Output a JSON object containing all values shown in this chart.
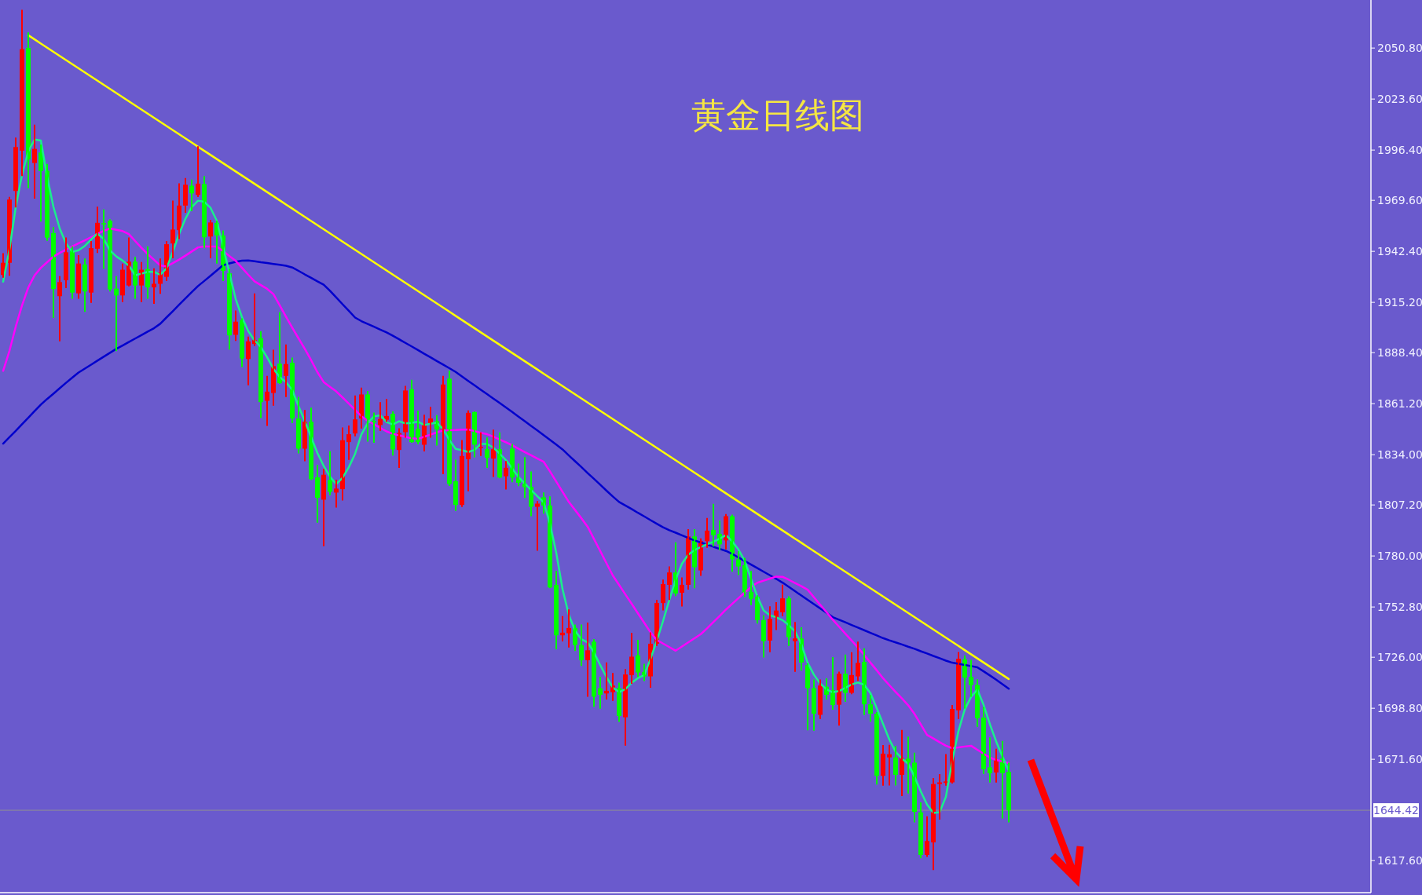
{
  "chart_data": {
    "type": "candlestick",
    "title": "黄金日线图",
    "categories": [
      null,
      null,
      null,
      null,
      null,
      null,
      null,
      null,
      null,
      null,
      null,
      null,
      null,
      null,
      null,
      null,
      null,
      null,
      null,
      null,
      null,
      null,
      null,
      null,
      null,
      null,
      null,
      null,
      null,
      null,
      null,
      null,
      null,
      null,
      null,
      null,
      null,
      null,
      null,
      null,
      null,
      null,
      null,
      null,
      null,
      null,
      null,
      null,
      null,
      null,
      null,
      null,
      null,
      null,
      null,
      null,
      null,
      null,
      null,
      null,
      null,
      null,
      null,
      null,
      null,
      null,
      null,
      null,
      null,
      null,
      null,
      null,
      null,
      null,
      null,
      null,
      null,
      null,
      null,
      null,
      null,
      null,
      null,
      null,
      null,
      null,
      null,
      null,
      null,
      null,
      null,
      null,
      null,
      null,
      null,
      null,
      null,
      null,
      null,
      null,
      null,
      null,
      null,
      null,
      null,
      null,
      null,
      null,
      null,
      null,
      null,
      null,
      null,
      null,
      null,
      null,
      null,
      null,
      null,
      null,
      null,
      null,
      null,
      null,
      null,
      null,
      null,
      null,
      null,
      null,
      null,
      null,
      null,
      null,
      null,
      null,
      null,
      null,
      null,
      null,
      null,
      null,
      null,
      null,
      null,
      null,
      null,
      null,
      null,
      null,
      null,
      null,
      null,
      null,
      null,
      null,
      null,
      null,
      null,
      null,
      null
    ],
    "ohlc": [
      [
        1929.8,
        1941.0,
        1928.8,
        1936.3
      ],
      [
        1936.3,
        1971.0,
        1929.8,
        1970.0
      ],
      [
        1974.6,
        2002.6,
        1966.2,
        1998.0
      ],
      [
        1996.1,
        2070.8,
        1983.0,
        2050.2
      ],
      [
        2050.8,
        2058.7,
        1976.5,
        1991.4
      ],
      [
        1989.5,
        2009.5,
        1970.9,
        1997.0
      ],
      [
        1995.1,
        1998.9,
        1958.7,
        1985.2
      ],
      [
        1985.4,
        1988.6,
        1948.4,
        1949.7
      ],
      [
        1952.2,
        1955.0,
        1907.3,
        1922.3
      ],
      [
        1918.5,
        1928.8,
        1894.8,
        1926.0
      ],
      [
        1927.0,
        1949.4,
        1923.2,
        1941.9
      ],
      [
        1942.8,
        1944.7,
        1917.6,
        1920.4
      ],
      [
        1920.0,
        1940.0,
        1917.6,
        1935.9
      ],
      [
        1935.4,
        1938.2,
        1910.5,
        1921.0
      ],
      [
        1920.4,
        1947.5,
        1915.4,
        1944.1
      ],
      [
        1943.8,
        1965.8,
        1941.9,
        1957.6
      ],
      [
        1957.4,
        1964.3,
        1933.5,
        1956.8
      ],
      [
        1958.7,
        1959.1,
        1921.4,
        1922.1
      ],
      [
        1922.5,
        1928.8,
        1889.6,
        1918.9
      ],
      [
        1918.9,
        1935.4,
        1915.8,
        1932.6
      ],
      [
        1924.2,
        1949.4,
        1924.2,
        1936.9
      ],
      [
        1936.9,
        1939.1,
        1917.6,
        1924.2
      ],
      [
        1924.2,
        1936.3,
        1915.8,
        1932.6
      ],
      [
        1932.9,
        1944.7,
        1917.6,
        1923.2
      ],
      [
        1923.2,
        1932.9,
        1914.8,
        1925.1
      ],
      [
        1925.1,
        1938.2,
        1920.2,
        1931.1
      ],
      [
        1928.8,
        1947.5,
        1927.0,
        1946.2
      ],
      [
        1946.6,
        1969.0,
        1939.1,
        1954.0
      ],
      [
        1953.7,
        1978.3,
        1949.4,
        1966.8
      ],
      [
        1966.8,
        1981.1,
        1963.4,
        1977.9
      ],
      [
        1977.4,
        1980.2,
        1964.3,
        1973.3
      ],
      [
        1972.5,
        1998.0,
        1971.8,
        1978.5
      ],
      [
        1978.3,
        1982.1,
        1944.7,
        1949.9
      ],
      [
        1950.3,
        1958.7,
        1939.1,
        1957.8
      ],
      [
        1957.6,
        1958.3,
        1936.3,
        1950.9
      ],
      [
        1950.9,
        1953.1,
        1927.0,
        1932.0
      ],
      [
        1930.7,
        1932.6,
        1890.5,
        1897.6
      ],
      [
        1897.9,
        1910.4,
        1895.1,
        1904.9
      ],
      [
        1905.8,
        1906.3,
        1881.1,
        1885.3
      ],
      [
        1885.0,
        1896.5,
        1871.4,
        1894.4
      ],
      [
        1893.0,
        1919.5,
        1892.3,
        1895.1
      ],
      [
        1896.1,
        1899.3,
        1853.9,
        1862.0
      ],
      [
        1862.7,
        1875.6,
        1849.8,
        1867.6
      ],
      [
        1866.9,
        1889.5,
        1860.5,
        1881.2
      ],
      [
        1882.5,
        1909.5,
        1872.1,
        1872.1
      ],
      [
        1876.0,
        1892.3,
        1865.1,
        1882.3
      ],
      [
        1883.0,
        1885.3,
        1851.2,
        1853.3
      ],
      [
        1853.3,
        1864.4,
        1835.1,
        1837.2
      ],
      [
        1837.2,
        1857.4,
        1830.9,
        1851.6
      ],
      [
        1851.6,
        1858.6,
        1820.9,
        1820.9
      ],
      [
        1821.9,
        1828.1,
        1798.2,
        1811.0
      ],
      [
        1810.0,
        1826.1,
        1785.6,
        1823.3
      ],
      [
        1820.5,
        1835.4,
        1812.8,
        1814.2
      ],
      [
        1813.8,
        1820.2,
        1806.2,
        1815.9
      ],
      [
        1815.6,
        1848.1,
        1810.0,
        1841.7
      ],
      [
        1840.7,
        1849.1,
        1831.6,
        1844.9
      ],
      [
        1845.3,
        1865.1,
        1844.2,
        1852.8
      ],
      [
        1853.3,
        1869.3,
        1848.4,
        1866.1
      ],
      [
        1866.1,
        1867.5,
        1841.4,
        1852.6
      ],
      [
        1851.9,
        1856.0,
        1840.7,
        1851.2
      ],
      [
        1849.8,
        1861.6,
        1847.0,
        1853.0
      ],
      [
        1852.6,
        1863.4,
        1851.9,
        1854.6
      ],
      [
        1855.8,
        1856.7,
        1834.0,
        1836.8
      ],
      [
        1836.5,
        1847.7,
        1827.4,
        1845.6
      ],
      [
        1846.0,
        1870.3,
        1843.5,
        1868.2
      ],
      [
        1868.9,
        1873.5,
        1840.7,
        1840.7
      ],
      [
        1847.7,
        1857.1,
        1840.0,
        1840.7
      ],
      [
        1839.3,
        1854.9,
        1836.2,
        1850.5
      ],
      [
        1850.5,
        1859.1,
        1843.5,
        1853.3
      ],
      [
        1851.9,
        1854.7,
        1839.3,
        1847.4
      ],
      [
        1847.0,
        1875.6,
        1824.0,
        1871.4
      ],
      [
        1874.5,
        1878.4,
        1817.7,
        1818.4
      ],
      [
        1819.8,
        1830.9,
        1804.4,
        1807.2
      ],
      [
        1807.2,
        1841.4,
        1806.5,
        1833.3
      ],
      [
        1831.6,
        1857.2,
        1814.9,
        1856.3
      ],
      [
        1856.7,
        1856.7,
        1833.0,
        1839.3
      ],
      [
        1837.8,
        1845.5,
        1833.7,
        1838.2
      ],
      [
        1836.9,
        1842.7,
        1827.4,
        1832.3
      ],
      [
        1831.9,
        1846.9,
        1822.5,
        1836.9
      ],
      [
        1836.9,
        1845.5,
        1821.8,
        1821.8
      ],
      [
        1822.5,
        1830.2,
        1815.8,
        1827.0
      ],
      [
        1837.2,
        1839.3,
        1819.7,
        1821.8
      ],
      [
        1821.8,
        1828.8,
        1817.6,
        1819.0
      ],
      [
        1818.6,
        1832.3,
        1811.4,
        1816.7
      ],
      [
        1816.9,
        1824.6,
        1801.6,
        1806.2
      ],
      [
        1806.2,
        1808.8,
        1783.2,
        1807.9
      ],
      [
        1811.3,
        1813.4,
        1803.0,
        1806.9
      ],
      [
        1806.9,
        1811.3,
        1763.2,
        1763.2
      ],
      [
        1764.6,
        1771.6,
        1730.7,
        1737.7
      ],
      [
        1737.7,
        1747.5,
        1734.9,
        1739.1
      ],
      [
        1738.8,
        1751.1,
        1731.6,
        1741.6
      ],
      [
        1741.6,
        1743.0,
        1729.7,
        1732.5
      ],
      [
        1732.5,
        1743.0,
        1721.8,
        1724.4
      ],
      [
        1724.4,
        1744.1,
        1705.3,
        1729.7
      ],
      [
        1734.3,
        1735.3,
        1700.0,
        1705.0
      ],
      [
        1709.5,
        1715.1,
        1699.0,
        1706.0
      ],
      [
        1706.7,
        1722.8,
        1703.9,
        1708.1
      ],
      [
        1707.4,
        1717.2,
        1703.2,
        1710.9
      ],
      [
        1709.5,
        1712.0,
        1692.0,
        1694.7
      ],
      [
        1694.0,
        1719.3,
        1679.3,
        1716.8
      ],
      [
        1716.5,
        1738.5,
        1712.3,
        1726.3
      ],
      [
        1727.0,
        1734.9,
        1715.8,
        1717.9
      ],
      [
        1718.2,
        1722.1,
        1713.7,
        1715.8
      ],
      [
        1715.8,
        1738.8,
        1710.2,
        1733.2
      ],
      [
        1733.2,
        1756.2,
        1732.5,
        1754.9
      ],
      [
        1754.9,
        1767.0,
        1751.4,
        1765.0
      ],
      [
        1764.6,
        1774.0,
        1756.9,
        1771.2
      ],
      [
        1771.2,
        1786.9,
        1759.0,
        1760.0
      ],
      [
        1760.4,
        1768.1,
        1753.5,
        1764.6
      ],
      [
        1764.6,
        1793.9,
        1762.5,
        1790.4
      ],
      [
        1790.4,
        1793.9,
        1763.2,
        1774.0
      ],
      [
        1772.3,
        1789.0,
        1769.8,
        1787.9
      ],
      [
        1787.9,
        1799.8,
        1784.8,
        1793.5
      ],
      [
        1793.9,
        1807.4,
        1785.5,
        1791.1
      ],
      [
        1791.8,
        1798.5,
        1783.5,
        1786.2
      ],
      [
        1788.3,
        1801.9,
        1783.9,
        1801.2
      ],
      [
        1801.2,
        1801.6,
        1772.0,
        1778.2
      ],
      [
        1778.2,
        1782.1,
        1770.2,
        1774.4
      ],
      [
        1775.1,
        1778.6,
        1758.6,
        1760.4
      ],
      [
        1760.9,
        1771.6,
        1754.2,
        1757.2
      ],
      [
        1758.3,
        1758.6,
        1744.4,
        1745.8
      ],
      [
        1745.8,
        1747.9,
        1726.3,
        1734.6
      ],
      [
        1734.9,
        1752.8,
        1729.1,
        1746.5
      ],
      [
        1746.9,
        1754.9,
        1740.9,
        1750.9
      ],
      [
        1750.0,
        1764.3,
        1748.3,
        1757.4
      ],
      [
        1757.4,
        1758.1,
        1732.5,
        1736.7
      ],
      [
        1734.6,
        1744.4,
        1718.6,
        1736.0
      ],
      [
        1736.0,
        1741.6,
        1719.3,
        1723.2
      ],
      [
        1721.8,
        1722.3,
        1687.5,
        1709.5
      ],
      [
        1709.5,
        1713.7,
        1687.2,
        1695.9
      ],
      [
        1695.3,
        1713.7,
        1693.5,
        1710.9
      ],
      [
        1710.3,
        1714.4,
        1703.9,
        1706.0
      ],
      [
        1708.4,
        1725.6,
        1698.4,
        1700.5
      ],
      [
        1700.7,
        1717.9,
        1690.0,
        1717.2
      ],
      [
        1717.2,
        1727.0,
        1702.6,
        1707.0
      ],
      [
        1707.0,
        1728.3,
        1706.7,
        1716.5
      ],
      [
        1715.8,
        1733.9,
        1713.7,
        1723.0
      ],
      [
        1723.5,
        1730.4,
        1695.6,
        1700.9
      ],
      [
        1700.9,
        1705.3,
        1692.1,
        1695.9
      ],
      [
        1695.9,
        1696.3,
        1658.6,
        1662.8
      ],
      [
        1662.8,
        1678.8,
        1657.9,
        1674.6
      ],
      [
        1672.6,
        1678.9,
        1658.0,
        1674.3
      ],
      [
        1672.6,
        1678.2,
        1658.0,
        1663.3
      ],
      [
        1663.3,
        1686.8,
        1652.4,
        1672.3
      ],
      [
        1671.9,
        1683.3,
        1653.8,
        1669.8
      ],
      [
        1669.8,
        1674.7,
        1638.4,
        1643.6
      ],
      [
        1643.3,
        1648.2,
        1619.2,
        1620.6
      ],
      [
        1620.6,
        1640.8,
        1620.0,
        1628.0
      ],
      [
        1627.3,
        1661.2,
        1613.0,
        1658.4
      ],
      [
        1658.4,
        1663.3,
        1639.8,
        1659.3
      ],
      [
        1659.0,
        1674.0,
        1657.9,
        1659.8
      ],
      [
        1659.3,
        1700.1,
        1659.1,
        1698.4
      ],
      [
        1697.7,
        1728.4,
        1693.5,
        1725.2
      ],
      [
        1724.9,
        1726.6,
        1699.1,
        1715.1
      ],
      [
        1715.6,
        1724.2,
        1705.4,
        1711.2
      ],
      [
        1711.2,
        1713.8,
        1689.3,
        1693.5
      ],
      [
        1693.8,
        1699.1,
        1664.2,
        1666.3
      ],
      [
        1667.3,
        1682.8,
        1659.6,
        1664.2
      ],
      [
        1664.6,
        1676.8,
        1659.6,
        1671.2
      ],
      [
        1671.9,
        1681.0,
        1640.5,
        1664.2
      ],
      [
        1664.9,
        1669.4,
        1638.4,
        1644.4
      ]
    ],
    "series": [
      {
        "type": "line",
        "color": "#ffff00",
        "values": [
          null,
          null,
          null,
          null,
          2057.6,
          2055.4,
          2053.2,
          2051.0,
          2048.8,
          2046.6,
          2044.4,
          2042.2,
          2040.0,
          2037.8,
          2035.6,
          2033.4,
          2031.2,
          2029.0,
          2026.8,
          2024.6,
          2022.4,
          2020.2,
          2018.0,
          2015.8,
          2013.6,
          2011.4,
          2009.2,
          2007.0,
          2004.8,
          2002.6,
          2000.4,
          1998.2,
          1996.0,
          1993.8,
          1991.6,
          1989.4,
          1987.2,
          1985.0,
          1982.8,
          1980.6,
          1978.4,
          1976.2,
          1974.0,
          1971.8,
          1969.6,
          1967.4,
          1965.2,
          1963.0,
          1960.8,
          1958.6,
          1956.4,
          1954.2,
          1952.0,
          1949.8,
          1947.6,
          1945.4,
          1943.2,
          1941.0,
          1938.8,
          1936.6,
          1934.4,
          1932.2,
          1930.0,
          1927.8,
          1925.6,
          1923.4,
          1921.2,
          1919.0,
          1916.8,
          1914.6,
          1912.4,
          1910.2,
          1908.0,
          1905.8,
          1903.6,
          1901.4,
          1899.2,
          1897.0,
          1894.8,
          1892.6,
          1890.4,
          1888.2,
          1886.0,
          1883.8,
          1881.6,
          1879.4,
          1877.2,
          1875.0,
          1872.8,
          1870.6,
          1868.4,
          1866.2,
          1864.0,
          1861.8,
          1859.6,
          1857.4,
          1855.2,
          1853.0,
          1850.8,
          1848.6,
          1846.4,
          1844.2,
          1842.0,
          1839.8,
          1837.6,
          1835.4,
          1833.2,
          1831.0,
          1828.8,
          1826.6,
          1824.4,
          1822.2,
          1820.0,
          1817.8,
          1815.6,
          1813.4,
          1811.2,
          1809.0,
          1806.8,
          1804.6,
          1802.4,
          1800.2,
          1798.0,
          1795.8,
          1793.6,
          1791.4,
          1789.2,
          1787.0,
          1784.8,
          1782.6,
          1780.4,
          1778.2,
          1776.0,
          1773.8,
          1771.6,
          1769.4,
          1767.2,
          1765.0,
          1762.8,
          1760.6,
          1758.4,
          1756.2,
          1754.0,
          1751.8,
          1749.6,
          1747.4,
          1745.2,
          1743.0,
          1740.8,
          1738.6,
          1736.4,
          1734.2,
          1732.0,
          1729.8,
          1727.6,
          1725.4,
          1723.2,
          1721.0,
          1718.8,
          1716.6,
          1714.4
        ]
      },
      {
        "type": "line",
        "color": "#0000cd",
        "values": [
          1839.9,
          1843.3,
          1846.7,
          1850.2,
          1853.7,
          1857.2,
          1860.7,
          1863.7,
          1866.5,
          1869.4,
          1872.3,
          1875.1,
          1877.8,
          1879.9,
          1882.0,
          1884.1,
          1886.2,
          1888.3,
          1890.4,
          1892.2,
          1894.1,
          1895.9,
          1897.7,
          1899.6,
          1901.4,
          1903.8,
          1907.2,
          1910.5,
          1913.9,
          1917.3,
          1920.6,
          1923.9,
          1926.6,
          1929.4,
          1932.2,
          1935.0,
          1936.0,
          1936.8,
          1937.4,
          1937.5,
          1937.1,
          1936.6,
          1936.2,
          1935.7,
          1935.2,
          1934.7,
          1933.8,
          1932.0,
          1930.1,
          1928.3,
          1926.4,
          1924.6,
          1921.4,
          1917.8,
          1914.2,
          1910.7,
          1907.1,
          1905.2,
          1903.7,
          1902.2,
          1900.7,
          1899.2,
          1897.4,
          1895.5,
          1893.6,
          1891.7,
          1889.8,
          1887.8,
          1885.9,
          1883.9,
          1882.0,
          1880.1,
          1878.1,
          1875.7,
          1873.3,
          1871.0,
          1868.6,
          1866.3,
          1863.9,
          1861.6,
          1859.2,
          1856.8,
          1854.3,
          1851.8,
          1849.3,
          1846.9,
          1844.4,
          1841.9,
          1839.4,
          1836.8,
          1833.6,
          1830.5,
          1827.4,
          1824.2,
          1821.1,
          1818.0,
          1814.8,
          1811.7,
          1808.8,
          1806.9,
          1805.0,
          1803.0,
          1801.1,
          1799.1,
          1797.2,
          1795.3,
          1793.7,
          1792.4,
          1791.0,
          1789.6,
          1788.3,
          1787.2,
          1786.1,
          1784.9,
          1783.8,
          1782.7,
          1781.1,
          1779.2,
          1777.3,
          1775.4,
          1773.5,
          1771.6,
          1769.7,
          1767.8,
          1765.8,
          1763.5,
          1761.2,
          1758.9,
          1756.6,
          1754.3,
          1752.0,
          1749.7,
          1747.4,
          1746.0,
          1744.6,
          1743.2,
          1741.8,
          1740.4,
          1739.0,
          1737.6,
          1736.2,
          1735.0,
          1733.9,
          1732.8,
          1731.6,
          1730.5,
          1729.2,
          1728.0,
          1726.7,
          1725.5,
          1724.2,
          1723.1,
          1722.5,
          1721.9,
          1721.3,
          1720.6,
          1718.5,
          1716.3,
          1714.0,
          1711.6,
          1709.2
        ]
      },
      {
        "type": "line",
        "color": "#ff00ff",
        "values": [
          1878.7,
          1889.3,
          1902.2,
          1913.5,
          1923.1,
          1929.6,
          1933.6,
          1936.6,
          1939.6,
          1941.6,
          1943.3,
          1945.0,
          1946.7,
          1948.3,
          1950.0,
          1951.7,
          1953.3,
          1954.6,
          1953.9,
          1953.2,
          1951.6,
          1947.9,
          1944.3,
          1940.9,
          1937.9,
          1934.9,
          1934.3,
          1936.1,
          1938.0,
          1940.1,
          1942.3,
          1944.5,
          1945.0,
          1945.0,
          1945.0,
          1942.6,
          1939.9,
          1937.3,
          1933.6,
          1929.9,
          1926.4,
          1924.4,
          1922.4,
          1919.6,
          1913.6,
          1907.6,
          1901.7,
          1896.0,
          1890.4,
          1884.4,
          1878.0,
          1872.7,
          1870.2,
          1867.7,
          1864.5,
          1861.2,
          1857.9,
          1854.5,
          1852.1,
          1850.2,
          1848.3,
          1846.4,
          1845.1,
          1844.3,
          1843.5,
          1842.7,
          1842.4,
          1843.6,
          1844.7,
          1845.9,
          1846.9,
          1847.0,
          1847.1,
          1847.3,
          1847.4,
          1846.6,
          1845.7,
          1844.9,
          1843.6,
          1842.1,
          1840.6,
          1839.0,
          1837.2,
          1835.4,
          1833.7,
          1831.9,
          1830.2,
          1825.1,
          1819.7,
          1814.2,
          1808.8,
          1804.5,
          1800.1,
          1795.6,
          1789.1,
          1782.6,
          1776.1,
          1769.6,
          1764.6,
          1759.5,
          1754.5,
          1749.4,
          1744.4,
          1739.3,
          1735.2,
          1733.3,
          1731.4,
          1729.5,
          1731.7,
          1733.9,
          1736.1,
          1738.3,
          1741.4,
          1744.7,
          1748.0,
          1751.4,
          1754.5,
          1757.5,
          1760.5,
          1763.5,
          1765.7,
          1766.8,
          1767.9,
          1769.0,
          1768.9,
          1767.3,
          1765.6,
          1763.9,
          1762.0,
          1758.0,
          1754.0,
          1750.0,
          1746.0,
          1742.3,
          1738.6,
          1734.9,
          1731.2,
          1727.2,
          1723.1,
          1719.0,
          1714.8,
          1711.1,
          1707.5,
          1704.0,
          1700.4,
          1695.8,
          1690.2,
          1684.6,
          1682.7,
          1680.7,
          1678.8,
          1677.5,
          1677.9,
          1678.4,
          1678.8,
          1676.7,
          1674.6,
          1672.5,
          1671.2,
          1670.4,
          1669.6
        ]
      },
      {
        "type": "line",
        "color": "#19f08c",
        "values": [
          1926.2,
          1943.4,
          1965.9,
          1983.2,
          1995.6,
          2002.0,
          2001.5,
          1982.2,
          1966.1,
          1954.6,
          1946.6,
          1942.1,
          1943.0,
          1945.3,
          1948.7,
          1951.9,
          1949.0,
          1942.9,
          1939.7,
          1937.5,
          1934.8,
          1929.6,
          1930.5,
          1931.5,
          1931.5,
          1929.9,
          1933.4,
          1942.1,
          1951.7,
          1959.8,
          1966.0,
          1969.4,
          1968.8,
          1965.6,
          1958.7,
          1945.0,
          1930.8,
          1917.0,
          1907.3,
          1899.9,
          1894.9,
          1891.4,
          1885.9,
          1879.8,
          1875.4,
          1872.7,
          1868.5,
          1859.9,
          1851.7,
          1843.5,
          1834.9,
          1828.0,
          1822.3,
          1818.3,
          1821.7,
          1827.3,
          1834.5,
          1844.8,
          1850.8,
          1854.4,
          1855.0,
          1851.4,
          1850.1,
          1851.8,
          1850.7,
          1850.9,
          1851.6,
          1849.8,
          1850.5,
          1851.1,
          1847.6,
          1841.8,
          1837.1,
          1836.4,
          1835.4,
          1836.5,
          1839.7,
          1839.7,
          1837.8,
          1834.5,
          1831.1,
          1826.6,
          1822.1,
          1818.6,
          1815.2,
          1811.8,
          1808.6,
          1797.4,
          1781.7,
          1762.4,
          1748.6,
          1740.2,
          1735.6,
          1733.9,
          1728.6,
          1721.8,
          1715.4,
          1709.9,
          1707.4,
          1709.0,
          1712.4,
          1714.9,
          1716.5,
          1725.1,
          1734.8,
          1745.4,
          1756.6,
          1767.3,
          1775.9,
          1780.7,
          1783.1,
          1784.7,
          1786.3,
          1787.5,
          1789.2,
          1791.1,
          1787.8,
          1783.4,
          1777.4,
          1767.7,
          1758.3,
          1751.0,
          1748.4,
          1747.3,
          1745.8,
          1743.1,
          1739.8,
          1733.0,
          1723.1,
          1716.7,
          1712.0,
          1708.9,
          1707.3,
          1708.0,
          1709.7,
          1711.5,
          1712.5,
          1711.3,
          1706.8,
          1698.8,
          1690.5,
          1682.1,
          1675.6,
          1672.0,
          1669.2,
          1662.3,
          1654.5,
          1647.5,
          1643.0,
          1643.4,
          1651.6,
          1670.6,
          1686.7,
          1698.2,
          1704.8,
          1708.8,
          1700.6,
          1690.3,
          1681.1,
          1673.0,
          1665.5
        ]
      }
    ],
    "ylim": [
      1600.5,
      2076.4
    ],
    "yticks": [
      {
        "value": 1617.6,
        "label": "1617.60"
      },
      {
        "value": 1671.6,
        "label": "1671.60"
      },
      {
        "value": 1698.8,
        "label": "1698.80"
      },
      {
        "value": 1726.0,
        "label": "1726.00"
      },
      {
        "value": 1752.8,
        "label": "1752.80"
      },
      {
        "value": 1780.0,
        "label": "1780.00"
      },
      {
        "value": 1807.2,
        "label": "1807.20"
      },
      {
        "value": 1834.0,
        "label": "1834.00"
      },
      {
        "value": 1861.2,
        "label": "1861.20"
      },
      {
        "value": 1888.4,
        "label": "1888.40"
      },
      {
        "value": 1915.2,
        "label": "1915.20"
      },
      {
        "value": 1942.4,
        "label": "1942.40"
      },
      {
        "value": 1969.6,
        "label": "1969.60"
      },
      {
        "value": 1996.4,
        "label": "1996.40"
      },
      {
        "value": 2023.6,
        "label": "2023.60"
      },
      {
        "value": 2050.8,
        "label": "2050.80"
      }
    ],
    "ref_lines": [
      {
        "axis": "y",
        "value": 1644.42,
        "label": "1644.42",
        "color": "#909090"
      }
    ],
    "tick_labels": "y"
  }
}
